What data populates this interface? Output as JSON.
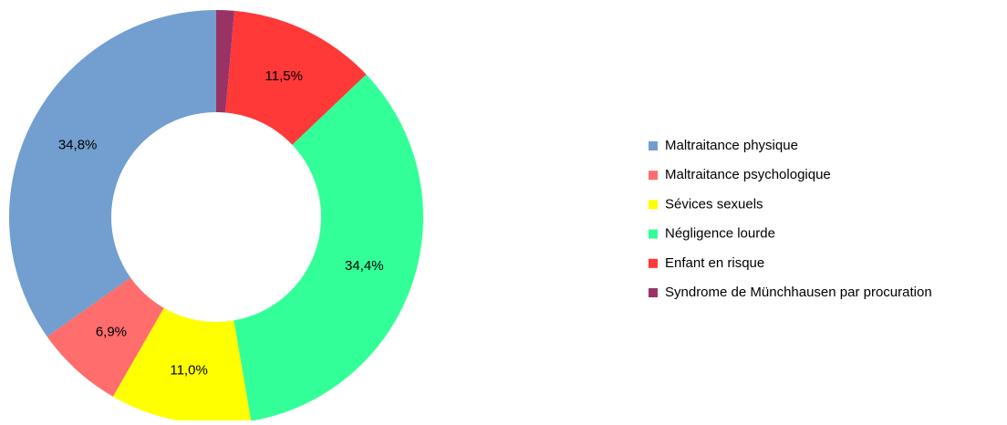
{
  "chart_data": {
    "type": "donut",
    "categories": [
      "Maltraitance physique",
      "Maltraitance psychologique",
      "Sévices sexuels",
      "Négligence lourde",
      "Enfant en risque",
      "Syndrome de Münchhausen par procuration"
    ],
    "values": [
      34.8,
      6.9,
      11.0,
      34.4,
      11.5,
      1.4
    ],
    "value_labels": [
      "34,8%",
      "6,9%",
      "11,0%",
      "34,4%",
      "11,5%",
      null
    ],
    "colors": [
      "#729fcf",
      "#ff6d6d",
      "#ffff00",
      "#33ff99",
      "#ff3838",
      "#993366"
    ],
    "legend": "right"
  }
}
